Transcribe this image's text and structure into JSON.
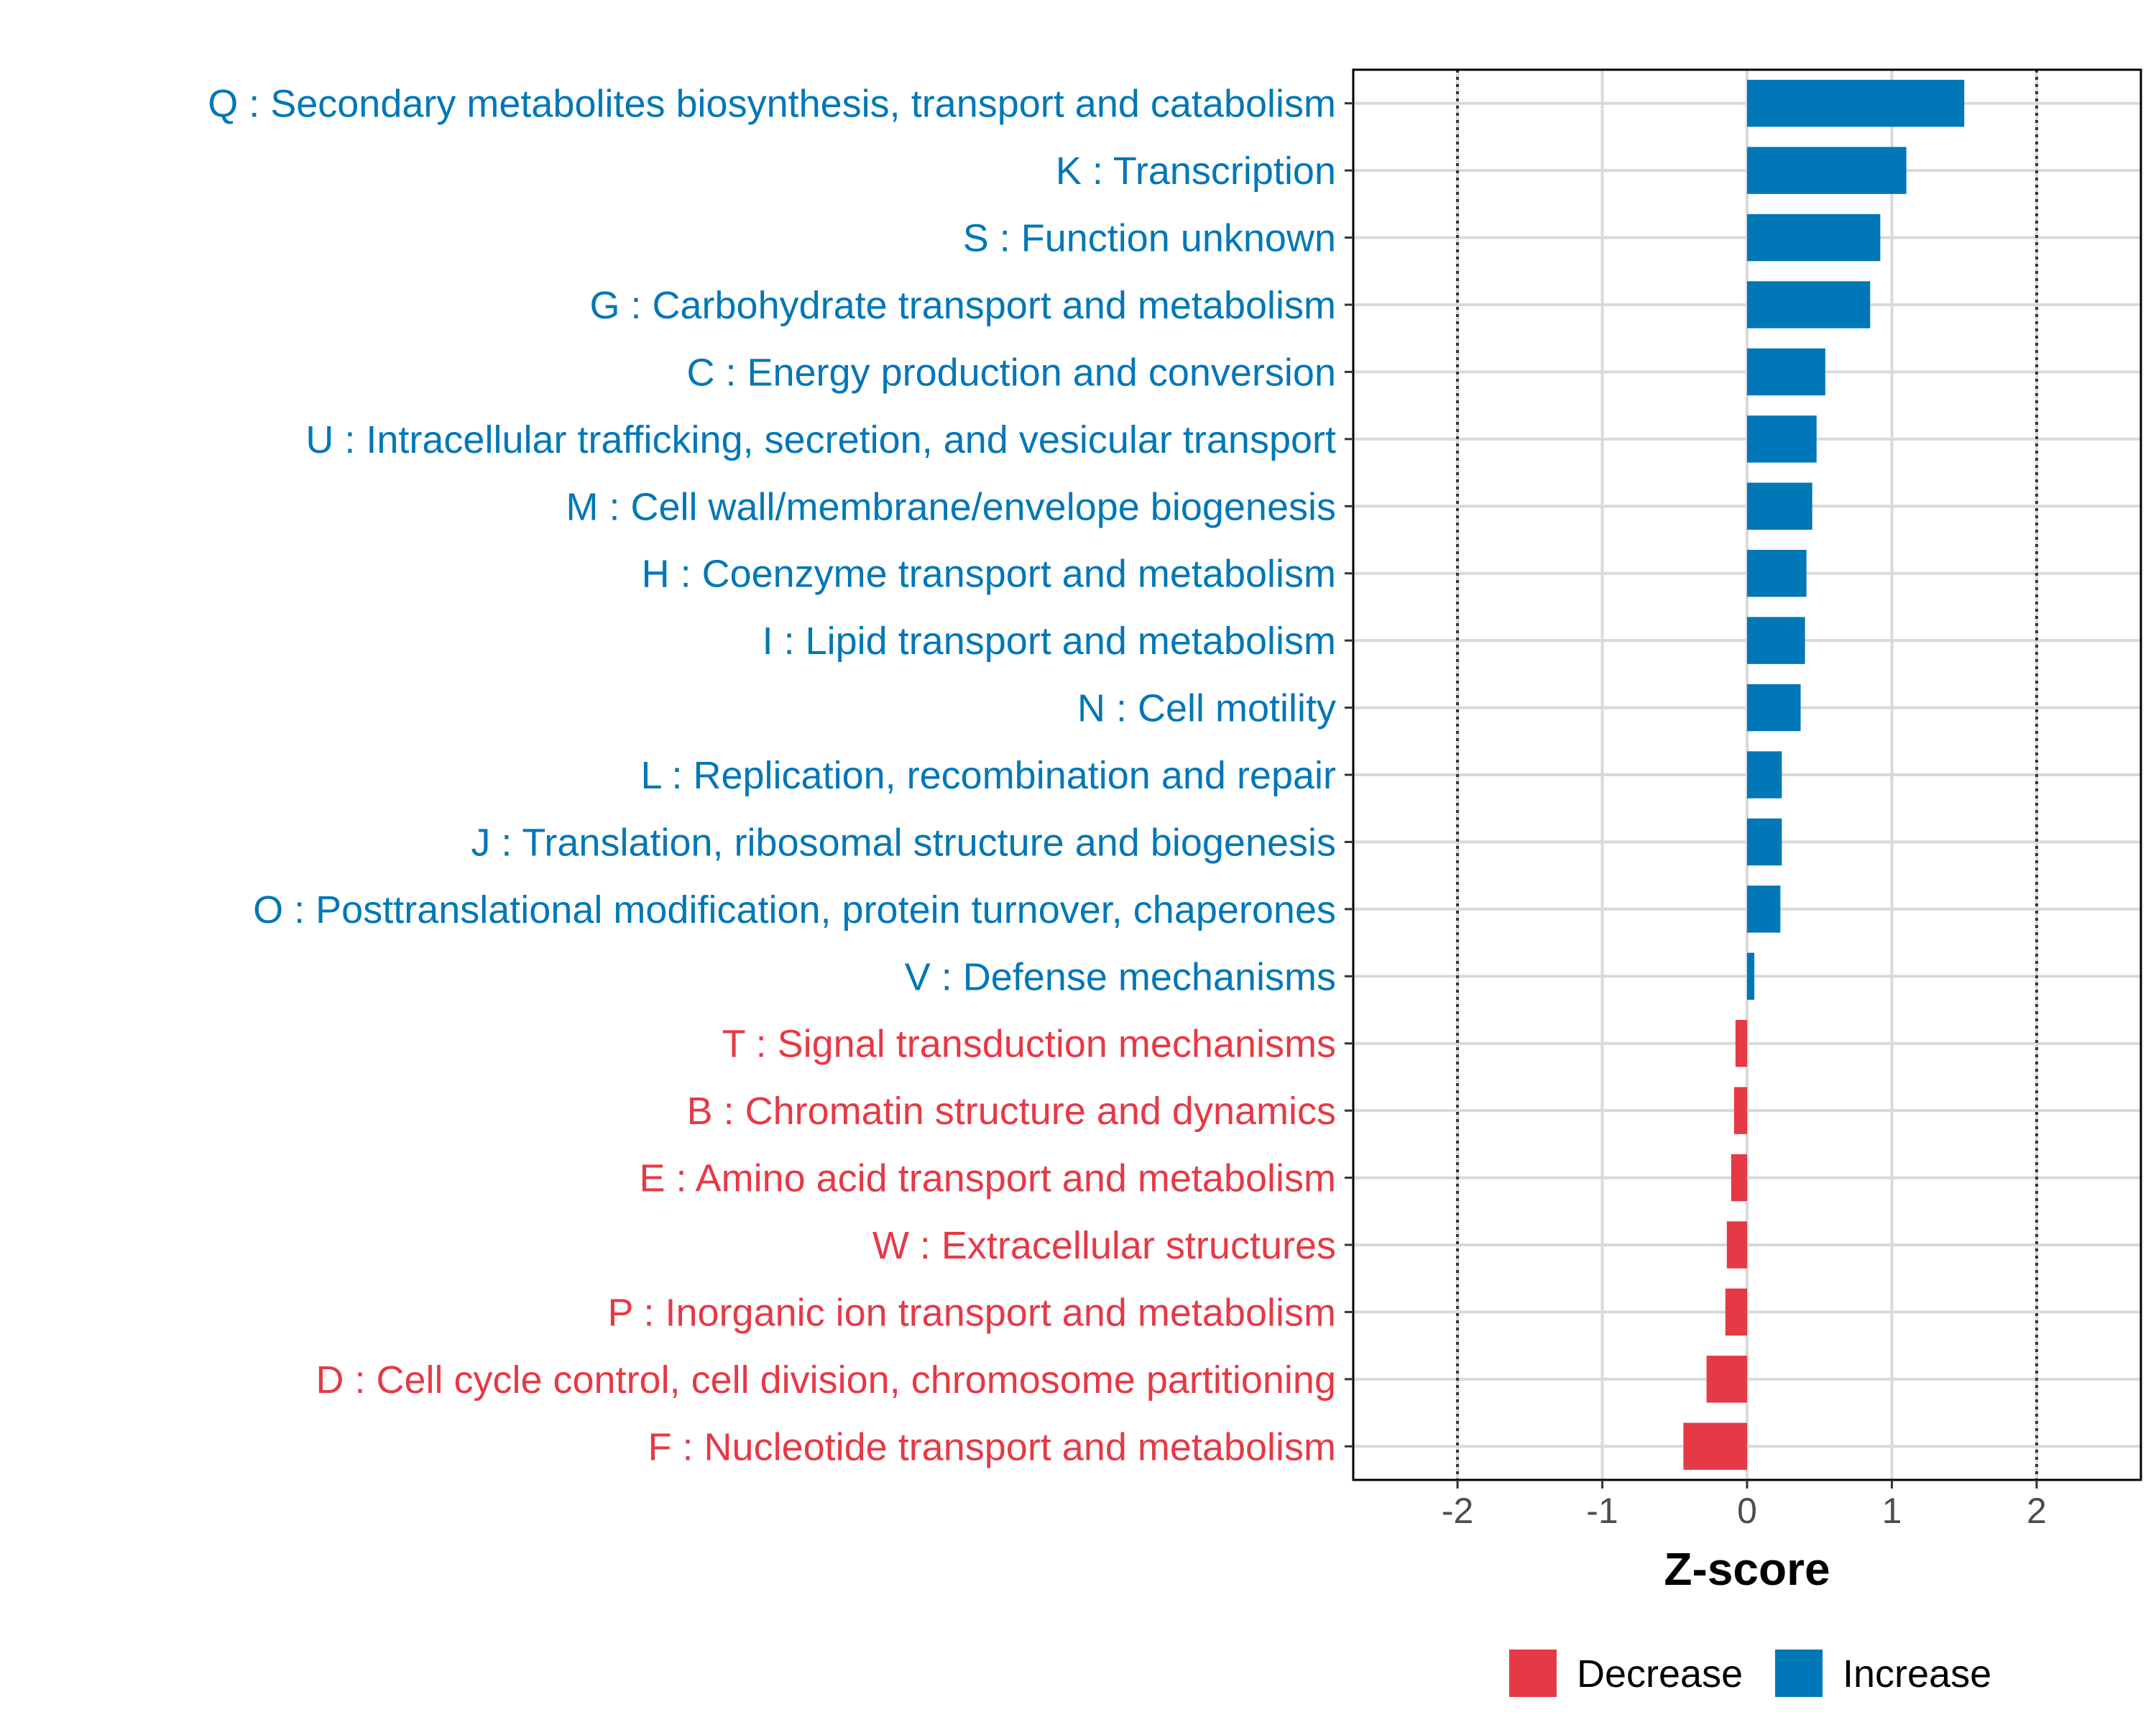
{
  "chart_data": {
    "type": "bar",
    "orientation": "horizontal",
    "title": "",
    "xlabel": "Z-score",
    "ylabel": "",
    "xlim": [
      -2.72,
      2.72
    ],
    "xticks": [
      "-2",
      "-1",
      "0",
      "1",
      "2"
    ],
    "xtick_values": [
      -2,
      -1,
      0,
      1,
      2
    ],
    "reference_lines": [
      -2,
      2
    ],
    "grid": true,
    "categories": [
      "Q : Secondary metabolites biosynthesis, transport and catabolism",
      "K : Transcription",
      "S : Function unknown",
      "G : Carbohydrate transport and metabolism",
      "C : Energy production and conversion",
      "U : Intracellular trafficking, secretion, and vesicular transport",
      "M : Cell wall/membrane/envelope biogenesis",
      "H : Coenzyme transport and metabolism",
      "I : Lipid transport and metabolism",
      "N : Cell motility",
      "L : Replication, recombination and repair",
      "J : Translation, ribosomal structure and biogenesis",
      "O : Posttranslational modification, protein turnover, chaperones",
      "V : Defense mechanisms",
      "T : Signal transduction mechanisms",
      "B : Chromatin structure and dynamics",
      "E : Amino acid transport and metabolism",
      "W : Extracellular structures",
      "P : Inorganic ion transport and metabolism",
      "D : Cell cycle control, cell division, chromosome partitioning",
      "F : Nucleotide transport and metabolism"
    ],
    "values": [
      1.5,
      1.1,
      0.92,
      0.85,
      0.54,
      0.48,
      0.45,
      0.41,
      0.4,
      0.37,
      0.24,
      0.24,
      0.23,
      0.05,
      -0.08,
      -0.09,
      -0.11,
      -0.14,
      -0.15,
      -0.28,
      -0.44
    ],
    "groups": [
      "Increase",
      "Increase",
      "Increase",
      "Increase",
      "Increase",
      "Increase",
      "Increase",
      "Increase",
      "Increase",
      "Increase",
      "Increase",
      "Increase",
      "Increase",
      "Increase",
      "Decrease",
      "Decrease",
      "Decrease",
      "Decrease",
      "Decrease",
      "Decrease",
      "Decrease"
    ],
    "colors": {
      "Increase": "#0077B6",
      "Decrease": "#E63946"
    },
    "legend": {
      "position": "bottom",
      "entries": [
        {
          "label": "Decrease",
          "color": "#E63946"
        },
        {
          "label": "Increase",
          "color": "#0077B6"
        }
      ]
    }
  }
}
